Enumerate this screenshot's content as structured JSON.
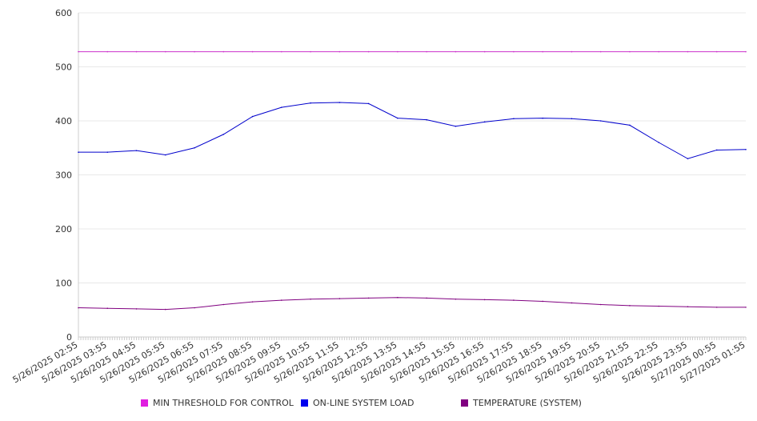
{
  "chart_data": {
    "type": "line",
    "title": "",
    "xlabel": "",
    "ylabel": "",
    "ylim": [
      0,
      600
    ],
    "yticks": [
      "0",
      "100",
      "200",
      "300",
      "400",
      "500",
      "600"
    ],
    "grid": true,
    "legend_position": "bottom",
    "categories": [
      "5/26/2025 02:55",
      "5/26/2025 03:55",
      "5/26/2025 04:55",
      "5/26/2025 05:55",
      "5/26/2025 06:55",
      "5/26/2025 07:55",
      "5/26/2025 08:55",
      "5/26/2025 09:55",
      "5/26/2025 10:55",
      "5/26/2025 11:55",
      "5/26/2025 12:55",
      "5/26/2025 13:55",
      "5/26/2025 14:55",
      "5/26/2025 15:55",
      "5/26/2025 16:55",
      "5/26/2025 17:55",
      "5/26/2025 18:55",
      "5/26/2025 19:55",
      "5/26/2025 20:55",
      "5/26/2025 21:55",
      "5/26/2025 22:55",
      "5/26/2025 23:55",
      "5/27/2025 00:55",
      "5/27/2025 01:55"
    ],
    "series": [
      {
        "name": "MIN THRESHOLD FOR CONTROL",
        "color": "#cc33cc",
        "values": [
          528,
          528,
          528,
          528,
          528,
          528,
          528,
          528,
          528,
          528,
          528,
          528,
          528,
          528,
          528,
          528,
          528,
          528,
          528,
          528,
          528,
          528,
          528,
          528
        ]
      },
      {
        "name": "ON-LINE SYSTEM LOAD",
        "color": "#0000cc",
        "values": [
          342,
          342,
          345,
          337,
          350,
          375,
          408,
          425,
          433,
          434,
          432,
          405,
          402,
          390,
          398,
          404,
          405,
          404,
          400,
          392,
          360,
          330,
          346,
          347
        ]
      },
      {
        "name": "TEMPERATURE (SYSTEM)",
        "color": "#800080",
        "values": [
          54,
          53,
          52,
          51,
          54,
          60,
          65,
          68,
          70,
          71,
          72,
          73,
          72,
          70,
          69,
          68,
          66,
          63,
          60,
          58,
          57,
          56,
          55,
          55
        ]
      }
    ]
  },
  "legend": {
    "swatch_colors": [
      "#e01ee0",
      "#0000ee",
      "#800080"
    ]
  }
}
